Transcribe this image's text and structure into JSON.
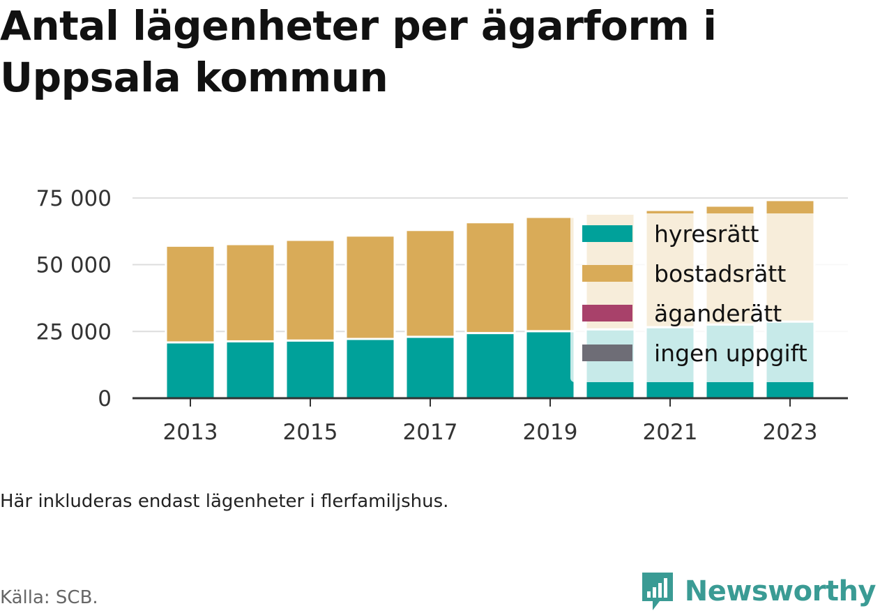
{
  "title": "Antal lägenheter per ägarform i Uppsala kommun",
  "note": "Här inkluderas endast lägenheter i flerfamiljshus.",
  "source": "Källa: SCB.",
  "brand": "Newsworthy",
  "colors": {
    "hyresratt": "#00a19a",
    "bostadsratt": "#d9ab58",
    "aganderatt": "#a8416a",
    "ingen_uppgift": "#6e6d76",
    "brand": "#3a9b94"
  },
  "chart_data": {
    "type": "bar",
    "stacked": true,
    "categories": [
      "2013",
      "2014",
      "2015",
      "2016",
      "2017",
      "2018",
      "2019",
      "2020",
      "2021",
      "2022",
      "2023"
    ],
    "x_tick_labels": [
      "2013",
      "2015",
      "2017",
      "2019",
      "2021",
      "2023"
    ],
    "y_tick_labels": [
      "0",
      "25 000",
      "50 000",
      "75 000"
    ],
    "y_ticks": [
      0,
      25000,
      50000,
      75000
    ],
    "ylim": [
      0,
      76000
    ],
    "grid": true,
    "legend_position": "inside-right",
    "series": [
      {
        "name": "hyresrätt",
        "color": "#00a19a",
        "values": [
          20900,
          21300,
          21600,
          22200,
          23000,
          24400,
          25100,
          25800,
          26600,
          27600,
          28700
        ]
      },
      {
        "name": "bostadsrätt",
        "color": "#d9ab58",
        "values": [
          36200,
          36400,
          37700,
          38700,
          40000,
          41500,
          42800,
          43300,
          43900,
          44500,
          45500
        ]
      },
      {
        "name": "äganderätt",
        "color": "#a8416a",
        "values": [
          0,
          0,
          0,
          0,
          0,
          0,
          0,
          0,
          0,
          0,
          0
        ]
      },
      {
        "name": "ingen uppgift",
        "color": "#6e6d76",
        "values": [
          0,
          0,
          0,
          0,
          0,
          0,
          0,
          0,
          0,
          0,
          0
        ]
      }
    ]
  }
}
